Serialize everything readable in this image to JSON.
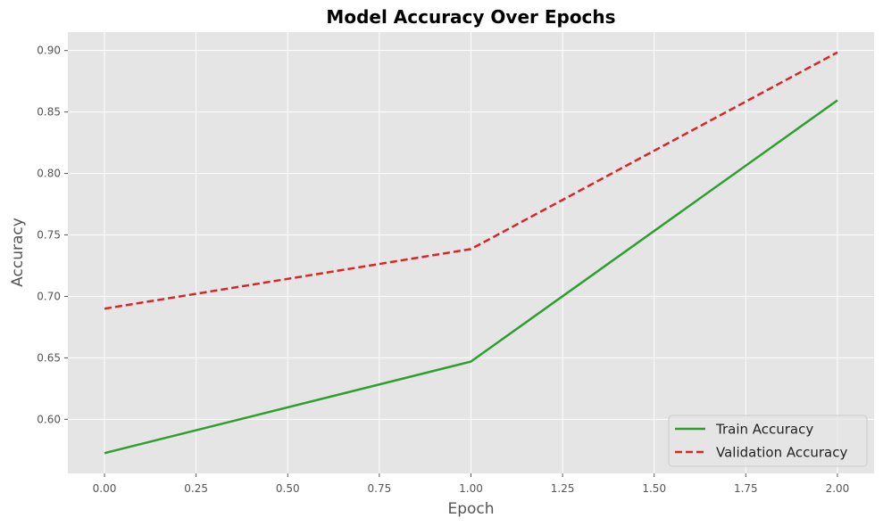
{
  "chart_data": {
    "type": "line",
    "title": "Model Accuracy Over Epochs",
    "xlabel": "Epoch",
    "ylabel": "Accuracy",
    "xlim": [
      -0.1,
      2.1
    ],
    "ylim": [
      0.556,
      0.915
    ],
    "xticks": [
      0.0,
      0.25,
      0.5,
      0.75,
      1.0,
      1.25,
      1.5,
      1.75,
      2.0
    ],
    "xtick_labels": [
      "0.00",
      "0.25",
      "0.50",
      "0.75",
      "1.00",
      "1.25",
      "1.50",
      "1.75",
      "2.00"
    ],
    "yticks": [
      0.6,
      0.65,
      0.7,
      0.75,
      0.8,
      0.85,
      0.9
    ],
    "ytick_labels": [
      "0.60",
      "0.65",
      "0.70",
      "0.75",
      "0.80",
      "0.85",
      "0.90"
    ],
    "grid": true,
    "legend_position": "bottom-right",
    "x": [
      0,
      1,
      2
    ],
    "series": [
      {
        "name": "Train Accuracy",
        "values": [
          0.5725,
          0.647,
          0.8595
        ],
        "color": "#2ca02c",
        "line_style": "solid"
      },
      {
        "name": "Validation Accuracy",
        "values": [
          0.69,
          0.7385,
          0.8985
        ],
        "color": "#d62728",
        "line_style": "dashed"
      }
    ]
  }
}
